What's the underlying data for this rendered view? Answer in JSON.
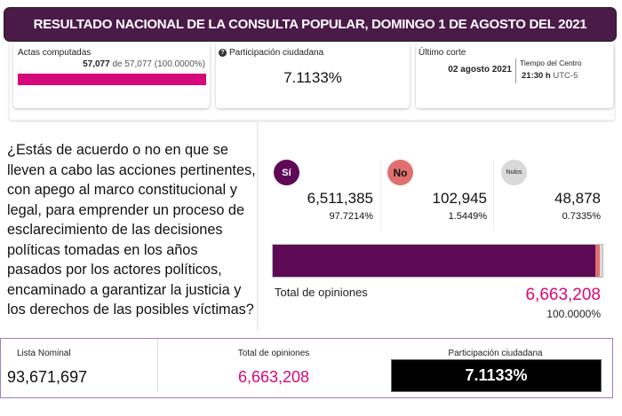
{
  "banner": {
    "title": "RESULTADO NACIONAL DE LA CONSULTA POPULAR, DOMINGO 1 DE AGOSTO DEL 2021"
  },
  "actas": {
    "label": "Actas computadas",
    "counted": "57,077",
    "of": "de 57,077 (100.0000%)",
    "progress_percent": 100,
    "color": "#d6097a"
  },
  "participacion": {
    "icon": "question-circle-icon",
    "label": "Participación ciudadana",
    "value": "7.1133%"
  },
  "corte": {
    "label": "Último corte",
    "date": "02 agosto 2021",
    "zone_label": "Tiempo del Centro",
    "time": "21:30 h",
    "utc": "UTC-5"
  },
  "question": "¿Estás de acuerdo o no en que se lleven a cabo las acciones pertinentes, con apego al marco constitucional y legal, para emprender un proceso de esclarecimiento de las decisiones políticas tomadas en los años pasados por los actores políticos, encaminado a garantizar la justicia y los derechos de las posibles víctimas?",
  "options": [
    {
      "label": "Sí",
      "votes": "6,511,385",
      "percent": "97.7214%",
      "share": 97.7214,
      "color": "#5f0a57"
    },
    {
      "label": "No",
      "votes": "102,945",
      "percent": "1.5449%",
      "share": 1.5449,
      "color": "#e07070"
    },
    {
      "label": "Nulos",
      "votes": "48,878",
      "percent": "0.7335%",
      "share": 0.7335,
      "color": "#d9d9d9"
    }
  ],
  "total": {
    "label": "Total de opiniones",
    "value": "6,663,208",
    "percent": "100.0000%",
    "color": "#d6097a"
  },
  "summary": {
    "lista_label": "Lista Nominal",
    "lista_value": "93,671,697",
    "total_label": "Total de opiniones",
    "total_value": "6,663,208",
    "part_label": "Participación ciudadana",
    "part_value": "7.1133%"
  }
}
